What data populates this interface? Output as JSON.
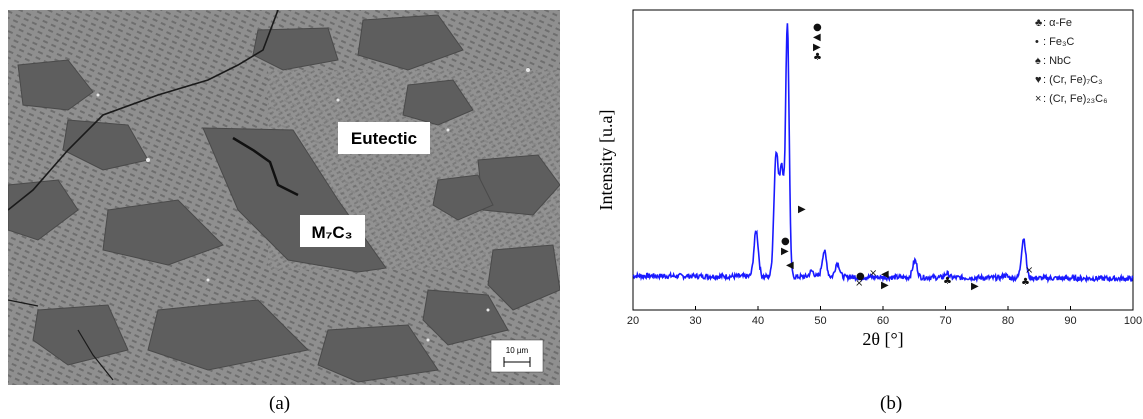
{
  "panel_a": {
    "labels": {
      "eutectic": "Eutectic",
      "m7c3": "M₇C₃"
    },
    "scalebar": "10 µm",
    "caption": "(a)"
  },
  "panel_b": {
    "caption": "(b)",
    "legend": [
      {
        "icon": "club-icon",
        "symbol": "♣",
        "text": ": α-Fe"
      },
      {
        "icon": "dot-icon",
        "symbol": "•",
        "text": ": Fe₃C"
      },
      {
        "icon": "spade-icon",
        "symbol": "♠",
        "text": ": NbC"
      },
      {
        "icon": "heart-icon",
        "symbol": "♥",
        "text": ": (Cr, Fe)₇C₃"
      },
      {
        "icon": "cross-icon",
        "symbol": "×",
        "text": ": (Cr, Fe)₂₃C₆"
      }
    ]
  },
  "chart_data": {
    "type": "line",
    "xlabel": "2θ [°]",
    "ylabel": "Intensity [u.a]",
    "xlim": [
      20,
      100
    ],
    "xticks": [
      20,
      30,
      40,
      50,
      60,
      70,
      80,
      90,
      100
    ],
    "series_color": "#1a1aff",
    "baseline": 0.12,
    "peaks": [
      {
        "x": 39.7,
        "y": 0.28
      },
      {
        "x": 42.9,
        "y": 0.55
      },
      {
        "x": 43.8,
        "y": 0.5
      },
      {
        "x": 44.7,
        "y": 1.0
      },
      {
        "x": 48.6,
        "y": 0.14
      },
      {
        "x": 50.6,
        "y": 0.21
      },
      {
        "x": 52.7,
        "y": 0.17
      },
      {
        "x": 65.1,
        "y": 0.18
      },
      {
        "x": 70.2,
        "y": 0.135
      },
      {
        "x": 79.5,
        "y": 0.13
      },
      {
        "x": 82.5,
        "y": 0.26
      }
    ]
  }
}
